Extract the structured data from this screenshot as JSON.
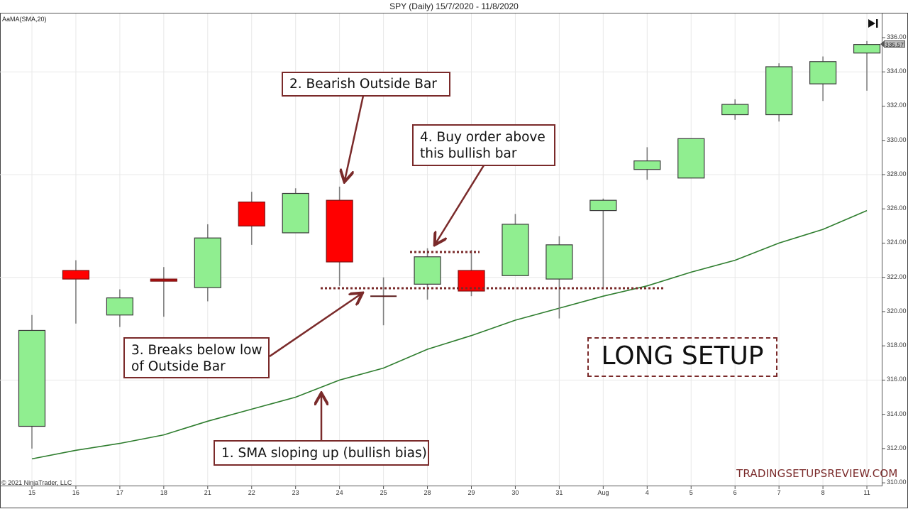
{
  "header": {
    "title": "SPY (Daily)  15/7/2020 - 11/8/2020",
    "indicator_label": "AaMA(SMA,20)"
  },
  "footer": {
    "copyright": "© 2021 NinjaTrader, LLC",
    "watermark": "TRADINGSETUPSREVIEW.COM"
  },
  "last_price_label": "335.57",
  "icons": {
    "go_to_end": "skip-to-end-icon"
  },
  "annotations": {
    "a1": "1. SMA sloping up (bullish bias)",
    "a2": "2. Bearish Outside Bar",
    "a3_line1": "3. Breaks below low",
    "a3_line2": "of Outside Bar",
    "a4_line1": "4. Buy order above",
    "a4_line2": "this bullish bar",
    "setup": "LONG SETUP"
  },
  "colors": {
    "bull_fill": "#90ee90",
    "bear_fill": "#ff0000",
    "candle_outline": "#3a3a3a",
    "wick": "#808080",
    "sma_line": "#2e7d2e",
    "annotation": "#7a2a2a",
    "grid": "#e8e8e8"
  },
  "chart_data": {
    "type": "candlestick",
    "title": "SPY (Daily)  15/7/2020 - 11/8/2020",
    "xlabel": "",
    "ylabel": "",
    "ylim": [
      310,
      336
    ],
    "y_ticks": [
      "336.00",
      "334.00",
      "332.00",
      "330.00",
      "328.00",
      "326.00",
      "324.00",
      "322.00",
      "320.00",
      "318.00",
      "316.00",
      "314.00",
      "312.00",
      "310.00"
    ],
    "grid": true,
    "categories": [
      "15",
      "16",
      "17",
      "18",
      "21",
      "22",
      "23",
      "24",
      "25",
      "28",
      "29",
      "30",
      "31",
      "Aug",
      "4",
      "5",
      "6",
      "7",
      "8",
      "11"
    ],
    "open": [
      313.3,
      322.4,
      319.8,
      321.9,
      321.4,
      326.4,
      324.6,
      326.5,
      320.9,
      321.6,
      322.4,
      322.1,
      321.9,
      325.9,
      328.3,
      327.8,
      331.5,
      331.5,
      333.3,
      335.1
    ],
    "high": [
      319.8,
      323.0,
      321.3,
      322.6,
      325.1,
      327.0,
      327.2,
      327.3,
      322.0,
      323.7,
      323.6,
      325.7,
      324.4,
      326.6,
      329.6,
      330.1,
      332.4,
      334.5,
      334.9,
      335.8
    ],
    "low": [
      312.0,
      319.3,
      319.1,
      319.7,
      320.6,
      323.9,
      324.6,
      321.5,
      319.2,
      320.7,
      320.9,
      322.1,
      319.6,
      321.4,
      327.7,
      327.8,
      331.2,
      331.1,
      332.3,
      332.9
    ],
    "close": [
      318.9,
      321.9,
      320.8,
      321.8,
      324.3,
      325.0,
      326.9,
      322.9,
      320.9,
      323.2,
      321.2,
      325.1,
      323.9,
      326.5,
      328.8,
      330.1,
      332.1,
      334.3,
      334.6,
      335.6
    ],
    "series": [
      {
        "name": "AaMA(SMA,20)",
        "type": "line",
        "values": [
          311.4,
          311.9,
          312.3,
          312.8,
          313.6,
          314.3,
          315.0,
          316.0,
          316.7,
          317.8,
          318.6,
          319.5,
          320.2,
          320.9,
          321.5,
          322.3,
          323.0,
          324.0,
          324.8,
          325.9
        ]
      }
    ],
    "reference_lines": [
      {
        "label": "Outside Bar low",
        "y": 321.4,
        "style": "dotted",
        "from": "24",
        "to": "4"
      },
      {
        "label": "Buy stop above bullish bar",
        "y": 323.5,
        "style": "dotted",
        "from": "28",
        "to": "29"
      }
    ],
    "last_price": 335.57,
    "legend": "none"
  }
}
